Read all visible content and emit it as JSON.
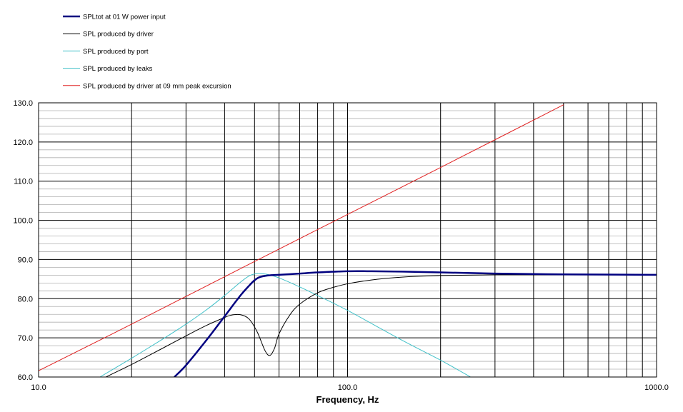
{
  "chart_data": {
    "type": "line",
    "xlabel": "Frequency, Hz",
    "ylabel": "",
    "xscale": "log",
    "xlim": [
      10,
      1000
    ],
    "ylim": [
      60,
      130
    ],
    "x_ticks": [
      "10.0",
      "100.0",
      "1000.0"
    ],
    "y_ticks": [
      "60.0",
      "70.0",
      "80.0",
      "90.0",
      "100.0",
      "110.0",
      "120.0",
      "130.0"
    ],
    "grid": true,
    "legend_position": "top-left",
    "series": [
      {
        "name": "SPLtot at 01 W power input",
        "color": "#000080",
        "width": 2.5,
        "x": [
          27.5,
          30,
          35,
          40,
          45,
          48,
          50,
          52,
          55,
          60,
          70,
          80,
          100,
          120,
          150,
          200,
          300,
          500,
          1000
        ],
        "y": [
          60,
          63,
          69.5,
          75.5,
          80.8,
          83.3,
          84.7,
          85.5,
          85.9,
          86.1,
          86.4,
          86.7,
          87.0,
          87.0,
          86.9,
          86.7,
          86.4,
          86.2,
          86.1
        ]
      },
      {
        "name": "SPL produced by driver",
        "color": "#000000",
        "width": 1,
        "x": [
          16.5,
          20,
          25,
          30,
          35,
          40,
          42,
          45,
          48,
          51,
          54,
          56,
          58,
          60,
          65,
          70,
          80,
          90,
          100,
          120,
          150,
          200,
          300,
          500,
          1000
        ],
        "y": [
          60,
          63.2,
          67.2,
          70.5,
          73.2,
          75.2,
          75.8,
          75.9,
          74.8,
          71.5,
          66.8,
          65.5,
          67.3,
          71.0,
          75.8,
          78.6,
          81.5,
          82.9,
          83.8,
          84.8,
          85.5,
          85.9,
          86.1,
          86.1,
          86.1
        ]
      },
      {
        "name": "SPL produced by port",
        "color": "#40C0C8",
        "width": 1,
        "x": [
          15.8,
          20,
          25,
          30,
          35,
          40,
          45,
          48,
          50,
          52,
          55,
          60,
          70,
          80,
          100,
          150,
          200,
          250
        ],
        "y": [
          60,
          64.8,
          69.5,
          73.5,
          77.2,
          80.8,
          84.2,
          85.8,
          86.3,
          86.4,
          86.2,
          85.3,
          83,
          80.8,
          77,
          69.4,
          64.3,
          60
        ]
      },
      {
        "name": "SPL produced by leaks",
        "color": "#40C0C8",
        "width": 1,
        "x": [],
        "y": []
      },
      {
        "name": "SPL produced by driver at 09 mm peak excursion",
        "color": "#E02020",
        "width": 1,
        "x": [
          10,
          20,
          50,
          100,
          200,
          500
        ],
        "y": [
          61.6,
          73.5,
          89.5,
          101.5,
          113.5,
          129.5
        ]
      }
    ]
  }
}
